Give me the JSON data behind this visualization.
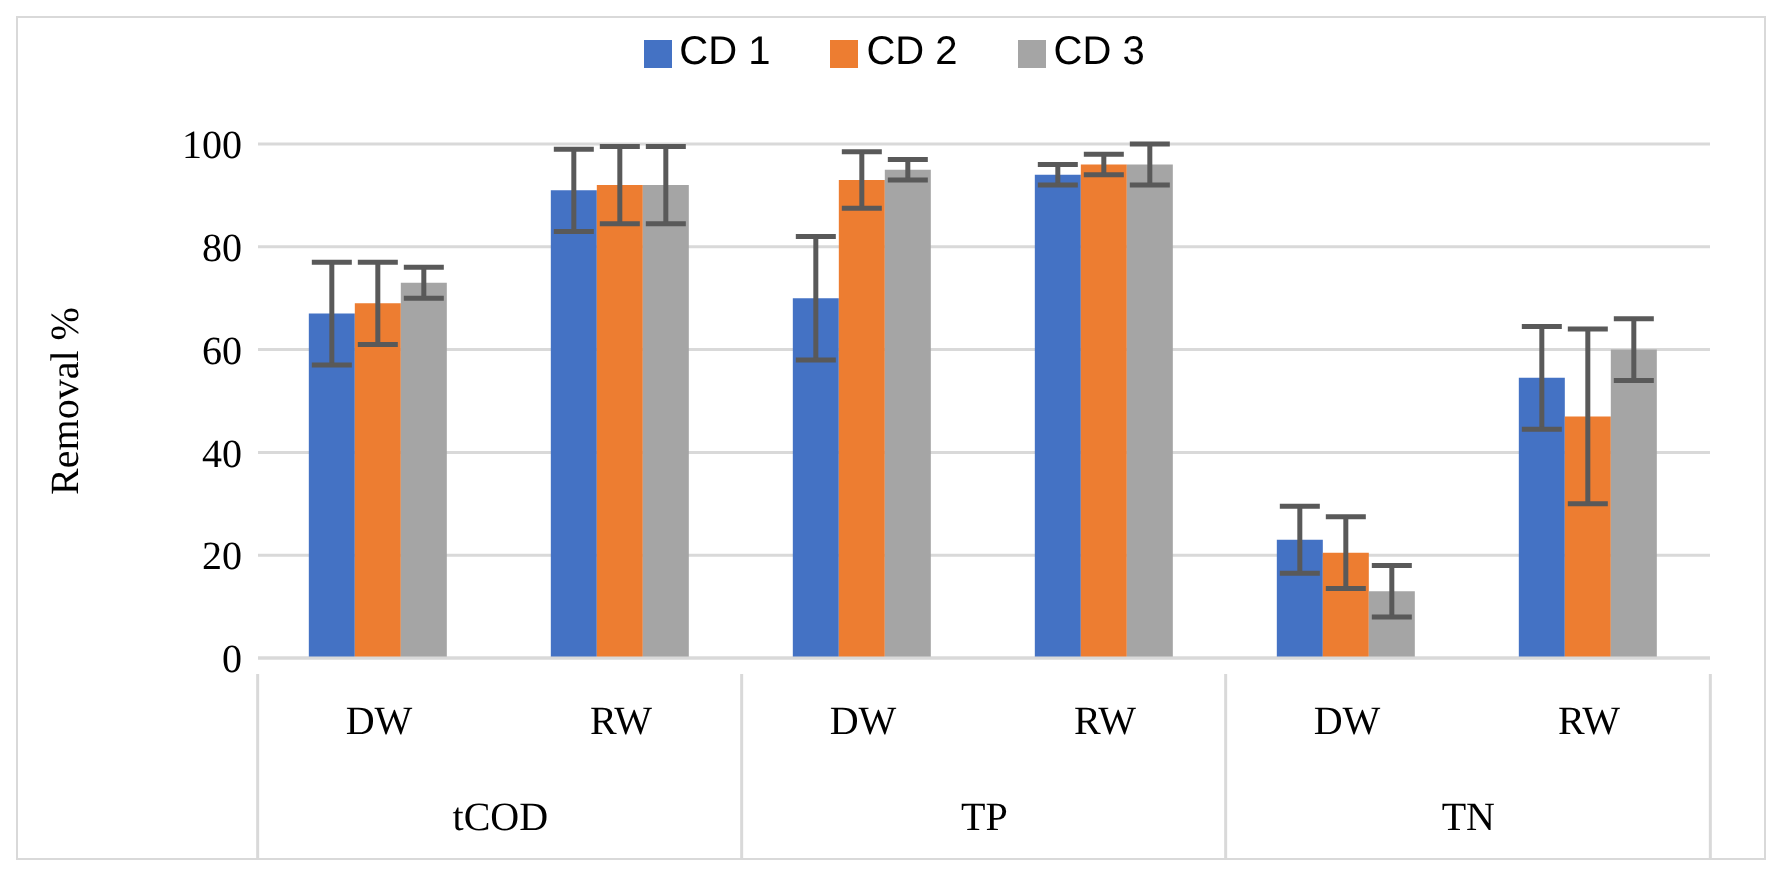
{
  "chart_data": {
    "type": "bar",
    "ylabel": "Removal %",
    "categories": [
      "DW",
      "RW",
      "DW",
      "RW",
      "DW",
      "RW"
    ],
    "annotations": [
      "tCOD",
      "TP",
      "TN"
    ],
    "series": [
      {
        "name": "CD 1",
        "color": "#4472c4",
        "values": [
          67,
          91,
          70,
          94,
          23,
          54.5
        ],
        "errors": [
          10,
          8,
          12,
          2,
          6.5,
          10
        ]
      },
      {
        "name": "CD 2",
        "color": "#ed7d31",
        "values": [
          69,
          92,
          93,
          96,
          20.5,
          47
        ],
        "errors": [
          8,
          7.5,
          5.5,
          2,
          7,
          17
        ]
      },
      {
        "name": "CD 3",
        "color": "#a5a5a5",
        "values": [
          73,
          92,
          95,
          96,
          13,
          60
        ],
        "errors": [
          3,
          7.5,
          2,
          4,
          5,
          6
        ]
      }
    ],
    "ylim": [
      0,
      100
    ],
    "yticks": [
      0,
      20,
      40,
      60,
      80,
      100
    ],
    "grid": "y",
    "legend": "top"
  }
}
